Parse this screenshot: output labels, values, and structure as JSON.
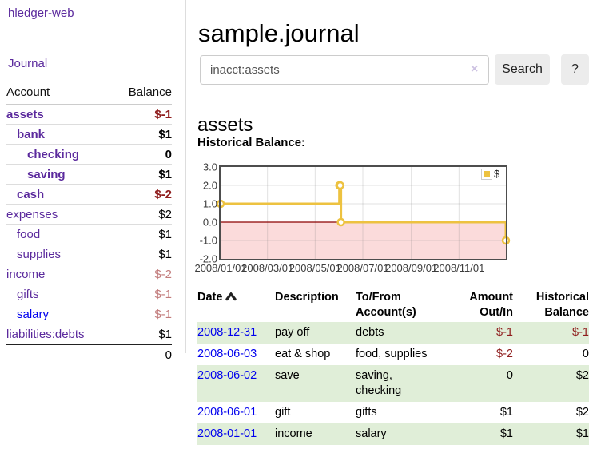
{
  "app": {
    "brand": "hledger-web",
    "nav_journal": "Journal"
  },
  "sidebar": {
    "header": {
      "account": "Account",
      "balance": "Balance"
    },
    "accounts": [
      {
        "label": "assets",
        "depth": 0,
        "bold": true,
        "name_color": "purple",
        "balance": "$-1",
        "balance_color": "neg-strong"
      },
      {
        "label": "bank",
        "depth": 1,
        "bold": true,
        "name_color": "purple",
        "balance": "$1",
        "balance_color": "black"
      },
      {
        "label": "checking",
        "depth": 2,
        "bold": true,
        "name_color": "purple",
        "balance": "0",
        "balance_color": "black"
      },
      {
        "label": "saving",
        "depth": 2,
        "bold": true,
        "name_color": "purple",
        "balance": "$1",
        "balance_color": "black"
      },
      {
        "label": "cash",
        "depth": 1,
        "bold": true,
        "name_color": "purple",
        "balance": "$-2",
        "balance_color": "neg-strong"
      },
      {
        "label": "expenses",
        "depth": 0,
        "bold": false,
        "name_color": "purple",
        "balance": "$2",
        "balance_color": "black"
      },
      {
        "label": "food",
        "depth": 1,
        "bold": false,
        "name_color": "purple",
        "balance": "$1",
        "balance_color": "black"
      },
      {
        "label": "supplies",
        "depth": 1,
        "bold": false,
        "name_color": "purple",
        "balance": "$1",
        "balance_color": "black"
      },
      {
        "label": "income",
        "depth": 0,
        "bold": false,
        "name_color": "purple",
        "balance": "$-2",
        "balance_color": "neg-pale"
      },
      {
        "label": "gifts",
        "depth": 1,
        "bold": false,
        "name_color": "purple",
        "balance": "$-1",
        "balance_color": "neg-pale"
      },
      {
        "label": "salary",
        "depth": 1,
        "bold": false,
        "name_color": "blue",
        "balance": "$-1",
        "balance_color": "neg-pale"
      },
      {
        "label": "liabilities:debts",
        "depth": 0,
        "bold": false,
        "name_color": "purple",
        "balance": "$1",
        "balance_color": "black"
      }
    ],
    "total": "0"
  },
  "header": {
    "title": "sample.journal"
  },
  "search": {
    "value": "inacct:assets",
    "clear_icon": "×",
    "search_label": "Search",
    "help_label": "?"
  },
  "account_page": {
    "heading": "assets",
    "chart_label": "Historical Balance:"
  },
  "chart_data": {
    "type": "line",
    "step": true,
    "title": "Historical Balance:",
    "series": [
      {
        "name": "$",
        "color": "#edc240",
        "points": [
          [
            "2008-01-01",
            1
          ],
          [
            "2008-06-01",
            2
          ],
          [
            "2008-06-02",
            2
          ],
          [
            "2008-06-03",
            0
          ],
          [
            "2008-12-31",
            -1
          ]
        ]
      }
    ],
    "x_range": [
      "2008-01-01",
      "2008-12-31"
    ],
    "ylim": [
      -2,
      3
    ],
    "y_ticks": [
      "3.0",
      "2.0",
      "1.0",
      "0.0",
      "-1.0",
      "-2.0"
    ],
    "x_ticks": [
      {
        "date": "2008-01-01",
        "label": "2008/01/01"
      },
      {
        "date": "2008-03-01",
        "label": "2008/03/01"
      },
      {
        "date": "2008-05-01",
        "label": "2008/05/01"
      },
      {
        "date": "2008-07-01",
        "label": "2008/07/01"
      },
      {
        "date": "2008-09-01",
        "label": "2008/09/01"
      },
      {
        "date": "2008-11-01",
        "label": "2008/11/01"
      }
    ],
    "legend": {
      "position": "top-right",
      "entries": [
        {
          "label": "$",
          "color": "#edc240"
        }
      ]
    },
    "grid": true,
    "negative_region_color": "#fbdbdb",
    "zero_line_color": "#8b0000",
    "border_color": "#4d4d4d",
    "gridline_color": "rgba(120,120,120,0.22)"
  },
  "register": {
    "columns": [
      {
        "line1": "Date",
        "line2": "",
        "align": "left",
        "sorted": true
      },
      {
        "line1": "Description",
        "line2": "",
        "align": "left",
        "sorted": false
      },
      {
        "line1": "To/From",
        "line2": "Account(s)",
        "align": "left",
        "sorted": false
      },
      {
        "line1": "Amount",
        "line2": "Out/In",
        "align": "right",
        "sorted": false
      },
      {
        "line1": "Historical",
        "line2": "Balance",
        "align": "right",
        "sorted": false
      }
    ],
    "rows": [
      {
        "date": "2008-12-31",
        "description": "pay off",
        "accounts": "debts",
        "amount": "$-1",
        "amount_negative": true,
        "balance": "$-1",
        "balance_negative": true
      },
      {
        "date": "2008-06-03",
        "description": "eat & shop",
        "accounts": "food, supplies",
        "amount": "$-2",
        "amount_negative": true,
        "balance": "0",
        "balance_negative": false
      },
      {
        "date": "2008-06-02",
        "description": "save",
        "accounts": "saving, checking",
        "amount": "0",
        "amount_negative": false,
        "balance": "$2",
        "balance_negative": false
      },
      {
        "date": "2008-06-01",
        "description": "gift",
        "accounts": "gifts",
        "amount": "$1",
        "amount_negative": false,
        "balance": "$2",
        "balance_negative": false
      },
      {
        "date": "2008-01-01",
        "description": "income",
        "accounts": "salary",
        "amount": "$1",
        "amount_negative": false,
        "balance": "$1",
        "balance_negative": false
      }
    ]
  },
  "colors": {
    "link_purple": "#5b2a9d",
    "link_blue": "#0000ee",
    "negative_strong": "#8f1d1d",
    "negative_pale": "#c27c7c",
    "row_stripe_green": "#e0eed8"
  }
}
